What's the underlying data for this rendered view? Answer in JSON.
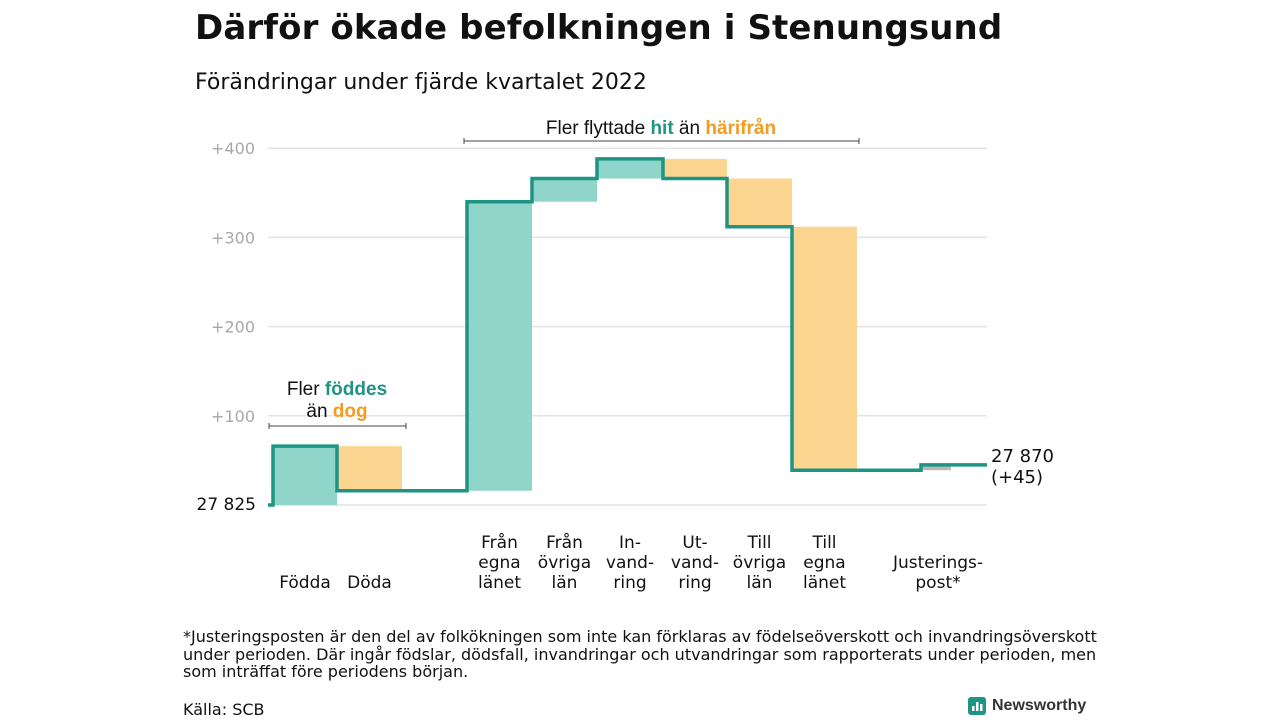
{
  "title": "Därför ökade befolkningen i Stenungsund",
  "subtitle": "Förändringar under fjärde kvartalet 2022",
  "chart_data": {
    "type": "waterfall",
    "start_label": "27 825",
    "end_label_value": "27 870",
    "end_label_change": "(+45)",
    "y_ticks": [
      "+100",
      "+200",
      "+300",
      "+400"
    ],
    "ylim": [
      0,
      440
    ],
    "grid": true,
    "colors": {
      "increase": "#8fd5c9",
      "decrease": "#fcd691",
      "adjustment": "#b9b9b9",
      "line": "#1f9484",
      "accent_green": "#1f9484",
      "accent_orange": "#f39c1f"
    },
    "steps": [
      {
        "key": "fodda",
        "label": [
          "Födda"
        ],
        "type": "increase",
        "from": 0,
        "to": 66
      },
      {
        "key": "doda",
        "label": [
          "Döda"
        ],
        "type": "decrease",
        "from": 66,
        "to": 16
      },
      {
        "key": "fran_egna",
        "label": [
          "Från",
          "egna",
          "länet"
        ],
        "type": "increase",
        "from": 16,
        "to": 340
      },
      {
        "key": "fran_ovriga",
        "label": [
          "Från",
          "övriga",
          "län"
        ],
        "type": "increase",
        "from": 340,
        "to": 366
      },
      {
        "key": "invandring",
        "label": [
          "In-",
          "vand-",
          "ring"
        ],
        "type": "increase",
        "from": 366,
        "to": 388
      },
      {
        "key": "utvandring",
        "label": [
          "Ut-",
          "vand-",
          "ring"
        ],
        "type": "decrease",
        "from": 388,
        "to": 366
      },
      {
        "key": "till_ovriga",
        "label": [
          "Till",
          "övriga",
          "län"
        ],
        "type": "decrease",
        "from": 366,
        "to": 312
      },
      {
        "key": "till_egna",
        "label": [
          "Till",
          "egna",
          "länet"
        ],
        "type": "decrease",
        "from": 312,
        "to": 39
      },
      {
        "key": "justering",
        "label": [
          "Justerings-",
          "post*"
        ],
        "type": "adjustment",
        "from": 39,
        "to": 45
      }
    ],
    "annotations": {
      "births": {
        "pre": "Fler ",
        "green": "föddes",
        "line2_pre": "än ",
        "orange": "dog"
      },
      "moves": {
        "pre": "Fler flyttade ",
        "green": "hit",
        "mid": " än ",
        "orange": "härifrån"
      }
    }
  },
  "footnote": "*Justeringsposten är den del av folkökningen som inte kan förklaras av födelseöverskott och invandringsöverskott under perioden. Där ingår födslar, dödsfall, invandringar och utvandringar som rapporterats under perioden, men som inträffat före periodens början.",
  "source": "Källa: SCB",
  "logo": {
    "name": "Newsworthy",
    "icon": "bar-chart-icon"
  }
}
